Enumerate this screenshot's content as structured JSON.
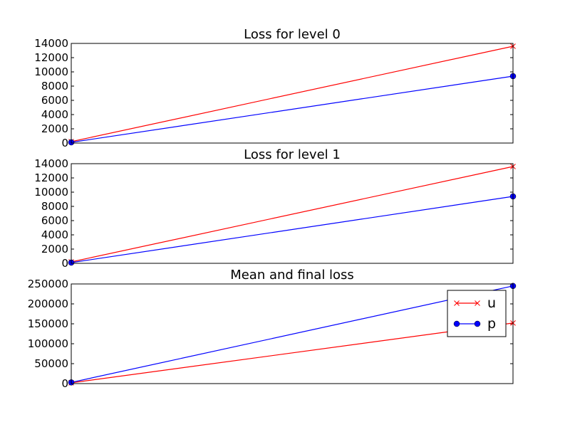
{
  "chart_data": [
    {
      "type": "line",
      "title": "Loss for level 0",
      "x": [
        0,
        1
      ],
      "ylim": [
        0,
        14000
      ],
      "yticks": [
        0,
        2000,
        4000,
        6000,
        8000,
        10000,
        12000,
        14000
      ],
      "series": [
        {
          "values": [
            200,
            13600
          ],
          "color": "#ff0000",
          "marker": "x"
        },
        {
          "values": [
            100,
            9400
          ],
          "color": "#0000ff",
          "marker": "o"
        }
      ]
    },
    {
      "type": "line",
      "title": "Loss for level 1",
      "x": [
        0,
        1
      ],
      "ylim": [
        0,
        14000
      ],
      "yticks": [
        0,
        2000,
        4000,
        6000,
        8000,
        10000,
        12000,
        14000
      ],
      "series": [
        {
          "values": [
            200,
            13600
          ],
          "color": "#ff0000",
          "marker": "x"
        },
        {
          "values": [
            100,
            9400
          ],
          "color": "#0000ff",
          "marker": "o"
        }
      ]
    },
    {
      "type": "line",
      "title": "Mean and final loss",
      "x": [
        0,
        1
      ],
      "ylim": [
        0,
        250000
      ],
      "yticks": [
        0,
        50000,
        100000,
        150000,
        200000,
        250000
      ],
      "legend": "upper-right",
      "series": [
        {
          "name": "u",
          "values": [
            2000,
            152000
          ],
          "color": "#ff0000",
          "marker": "x"
        },
        {
          "name": "p",
          "values": [
            3000,
            245000
          ],
          "color": "#0000ff",
          "marker": "o"
        }
      ]
    }
  ]
}
